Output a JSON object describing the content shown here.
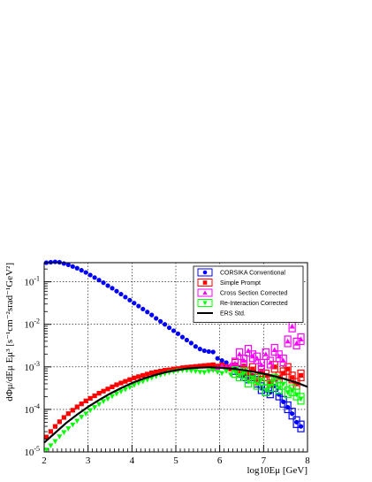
{
  "chart_data": {
    "type": "scatter",
    "xlabel": "log10Eμ [GeV]",
    "ylabel": "dΦμ/dEμ Eμ³ [s⁻¹cm⁻²srad⁻¹GeV²]",
    "xlim": [
      2,
      8
    ],
    "ylim_log10": [
      -5,
      -0.55
    ],
    "y_scale": "log",
    "grid": true,
    "legend_position": "top-right",
    "x_ticks": [
      "2",
      "3",
      "4",
      "5",
      "6",
      "7",
      "8"
    ],
    "y_ticks": [
      {
        "base": "10",
        "exp": "-5",
        "log": -5
      },
      {
        "base": "10",
        "exp": "-4",
        "log": -4
      },
      {
        "base": "10",
        "exp": "-3",
        "log": -3
      },
      {
        "base": "10",
        "exp": "-2",
        "log": -2
      },
      {
        "base": "10",
        "exp": "-1",
        "log": -1
      }
    ],
    "series": [
      {
        "name": "CORSIKA Conventional",
        "color": "#0000ff",
        "marker": "circle",
        "x": [
          2.05,
          2.15,
          2.25,
          2.35,
          2.45,
          2.55,
          2.65,
          2.75,
          2.85,
          2.95,
          3.05,
          3.15,
          3.25,
          3.35,
          3.45,
          3.55,
          3.65,
          3.75,
          3.85,
          3.95,
          4.05,
          4.15,
          4.25,
          4.35,
          4.45,
          4.55,
          4.65,
          4.75,
          4.85,
          4.95,
          5.05,
          5.15,
          5.25,
          5.35,
          5.45,
          5.55,
          5.65,
          5.75,
          5.85,
          5.95,
          6.05,
          6.15,
          6.25,
          6.35,
          6.45,
          6.55,
          6.65,
          6.75,
          6.85,
          6.95,
          7.05,
          7.15,
          7.25,
          7.35,
          7.45,
          7.55,
          7.65,
          7.75,
          7.85
        ],
        "log10_y": [
          -0.55,
          -0.54,
          -0.53,
          -0.54,
          -0.57,
          -0.6,
          -0.64,
          -0.68,
          -0.73,
          -0.78,
          -0.84,
          -0.9,
          -0.96,
          -1.02,
          -1.09,
          -1.15,
          -1.22,
          -1.29,
          -1.36,
          -1.43,
          -1.5,
          -1.57,
          -1.64,
          -1.71,
          -1.78,
          -1.86,
          -1.93,
          -2.0,
          -2.08,
          -2.15,
          -2.22,
          -2.3,
          -2.37,
          -2.44,
          -2.52,
          -2.58,
          -2.62,
          -2.64,
          -2.65,
          -2.8,
          -2.85,
          -2.9,
          -2.98,
          -3.05,
          -3.12,
          -3.2,
          -3.25,
          -3.2,
          -3.35,
          -3.5,
          -3.55,
          -3.6,
          -3.45,
          -3.65,
          -3.82,
          -3.95,
          -4.1,
          -4.3,
          -4.4
        ]
      },
      {
        "name": "Simple Prompt",
        "color": "#ff0000",
        "marker": "square",
        "x": [
          2.05,
          2.15,
          2.25,
          2.35,
          2.45,
          2.55,
          2.65,
          2.75,
          2.85,
          2.95,
          3.05,
          3.15,
          3.25,
          3.35,
          3.45,
          3.55,
          3.65,
          3.75,
          3.85,
          3.95,
          4.05,
          4.15,
          4.25,
          4.35,
          4.45,
          4.55,
          4.65,
          4.75,
          4.85,
          4.95,
          5.05,
          5.15,
          5.25,
          5.35,
          5.45,
          5.55,
          5.65,
          5.75,
          5.85,
          5.95,
          6.05,
          6.15,
          6.25,
          6.35,
          6.45,
          6.55,
          6.65,
          6.75,
          6.85,
          6.95,
          7.05,
          7.15,
          7.25,
          7.35,
          7.45,
          7.55,
          7.65,
          7.75,
          7.85
        ],
        "log10_y": [
          -4.65,
          -4.52,
          -4.4,
          -4.29,
          -4.19,
          -4.1,
          -4.02,
          -3.94,
          -3.87,
          -3.8,
          -3.74,
          -3.68,
          -3.62,
          -3.57,
          -3.52,
          -3.47,
          -3.42,
          -3.38,
          -3.34,
          -3.3,
          -3.26,
          -3.23,
          -3.2,
          -3.17,
          -3.14,
          -3.12,
          -3.1,
          -3.08,
          -3.07,
          -3.05,
          -3.04,
          -3.02,
          -3.01,
          -3.0,
          -2.99,
          -2.98,
          -2.97,
          -2.96,
          -2.95,
          -2.98,
          -2.95,
          -2.99,
          -3.05,
          -2.95,
          -3.1,
          -2.98,
          -3.15,
          -3.05,
          -3.3,
          -3.1,
          -3.2,
          -3.35,
          -3.0,
          -3.25,
          -3.15,
          -3.05,
          -3.25,
          -3.4,
          -3.2
        ]
      },
      {
        "name": "Cross Section Corrected",
        "color": "#ff00ff",
        "marker": "triangle-up",
        "x": [
          5.85,
          5.95,
          6.05,
          6.15,
          6.25,
          6.35,
          6.45,
          6.55,
          6.65,
          6.75,
          6.85,
          6.95,
          7.05,
          7.15,
          7.25,
          7.35,
          7.45,
          7.55,
          7.65,
          7.75,
          7.85
        ],
        "log10_y": [
          -3.05,
          -3.02,
          -2.98,
          -3.0,
          -2.95,
          -2.92,
          -2.7,
          -2.85,
          -2.62,
          -2.75,
          -2.8,
          -2.95,
          -2.7,
          -2.9,
          -2.6,
          -2.75,
          -2.85,
          -2.4,
          -2.05,
          -2.45,
          -2.35
        ]
      },
      {
        "name": "Re-Interaction Corrected",
        "color": "#00ff00",
        "marker": "triangle-down",
        "x": [
          2.05,
          2.15,
          2.25,
          2.35,
          2.45,
          2.55,
          2.65,
          2.75,
          2.85,
          2.95,
          3.05,
          3.15,
          3.25,
          3.35,
          3.45,
          3.55,
          3.65,
          3.75,
          3.85,
          3.95,
          4.05,
          4.15,
          4.25,
          4.35,
          4.45,
          4.55,
          4.65,
          4.75,
          4.85,
          4.95,
          5.05,
          5.15,
          5.25,
          5.35,
          5.45,
          5.55,
          5.65,
          5.75,
          5.85,
          5.95,
          6.05,
          6.15,
          6.25,
          6.35,
          6.45,
          6.55,
          6.65,
          6.75,
          6.85,
          6.95,
          7.05,
          7.15,
          7.25,
          7.35,
          7.45,
          7.55,
          7.65,
          7.75,
          7.85
        ],
        "log10_y": [
          -4.95,
          -4.85,
          -4.75,
          -4.64,
          -4.54,
          -4.45,
          -4.36,
          -4.27,
          -4.18,
          -4.1,
          -4.02,
          -3.95,
          -3.88,
          -3.81,
          -3.75,
          -3.69,
          -3.63,
          -3.58,
          -3.53,
          -3.48,
          -3.43,
          -3.38,
          -3.34,
          -3.3,
          -3.26,
          -3.22,
          -3.19,
          -3.16,
          -3.13,
          -3.11,
          -3.09,
          -3.08,
          -3.08,
          -3.09,
          -3.1,
          -3.12,
          -3.13,
          -3.1,
          -3.08,
          -3.12,
          -3.15,
          -3.1,
          -3.18,
          -3.12,
          -3.2,
          -3.15,
          -3.35,
          -3.25,
          -3.4,
          -3.3,
          -3.55,
          -3.45,
          -3.3,
          -3.5,
          -3.4,
          -3.6,
          -3.55,
          -3.65,
          -3.75
        ]
      },
      {
        "name": "ERS Std.",
        "color": "#000000",
        "marker": "line",
        "x": [
          2.0,
          2.25,
          2.5,
          2.75,
          3.0,
          3.25,
          3.5,
          3.75,
          4.0,
          4.25,
          4.5,
          4.75,
          5.0,
          5.25,
          5.5,
          5.75,
          6.0,
          6.25,
          6.5,
          6.75,
          7.0,
          7.25,
          7.5,
          7.75,
          8.0
        ],
        "log10_y": [
          -4.78,
          -4.55,
          -4.32,
          -4.12,
          -3.94,
          -3.78,
          -3.63,
          -3.5,
          -3.38,
          -3.28,
          -3.2,
          -3.13,
          -3.08,
          -3.04,
          -3.02,
          -3.01,
          -3.02,
          -3.04,
          -3.07,
          -3.11,
          -3.16,
          -3.22,
          -3.29,
          -3.37,
          -3.47
        ]
      }
    ]
  }
}
